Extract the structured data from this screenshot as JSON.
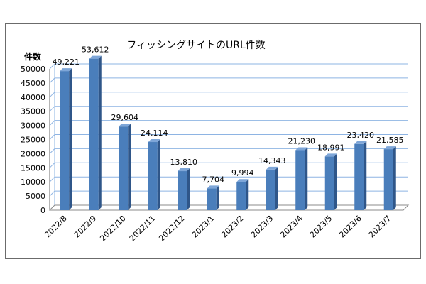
{
  "chart_data": {
    "type": "bar",
    "title": "フィッシングサイトのURL件数",
    "ylabel": "件数",
    "xlabel": "",
    "categories": [
      "2022/8",
      "2022/9",
      "2022/10",
      "2022/11",
      "2022/12",
      "2023/1",
      "2023/2",
      "2023/3",
      "2023/4",
      "2023/5",
      "2023/6",
      "2023/7"
    ],
    "values": [
      49221,
      53612,
      29604,
      24114,
      13810,
      7704,
      9994,
      14343,
      21230,
      18991,
      23420,
      21585
    ],
    "value_labels": [
      "49,221",
      "53,612",
      "29,604",
      "24,114",
      "13,810",
      "7,704",
      "9,994",
      "14,343",
      "21,230",
      "18,991",
      "23,420",
      "21,585"
    ],
    "yticks": [
      0,
      5000,
      10000,
      15000,
      20000,
      25000,
      30000,
      35000,
      40000,
      45000,
      50000
    ],
    "ytick_labels": [
      "0",
      "5000",
      "10000",
      "15000",
      "20000",
      "25000",
      "30000",
      "35000",
      "40000",
      "45000",
      "50000"
    ],
    "ylim": [
      0,
      50000
    ],
    "grid": true,
    "bar_color": "#4a7ebb",
    "bar_side_color": "#2f5689",
    "bar_top_color": "#7ea6d8"
  }
}
